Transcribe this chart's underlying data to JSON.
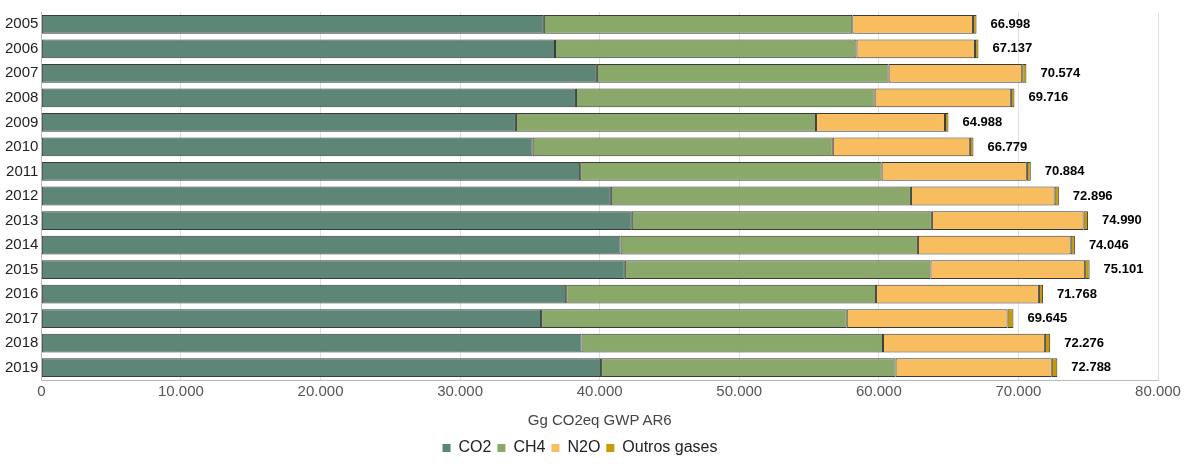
{
  "chart_data": {
    "type": "bar",
    "orientation": "horizontal",
    "stacked": true,
    "categories": [
      "2005",
      "2006",
      "2007",
      "2008",
      "2009",
      "2010",
      "2011",
      "2012",
      "2013",
      "2014",
      "2015",
      "2016",
      "2017",
      "2018",
      "2019"
    ],
    "series": [
      {
        "name": "CO2",
        "color": "#5e8677",
        "values": [
          36000,
          36800,
          39800,
          38300,
          34000,
          35200,
          38600,
          40800,
          42300,
          41500,
          41800,
          37600,
          35800,
          38700,
          40100
        ]
      },
      {
        "name": "CH4",
        "color": "#8ba86b",
        "values": [
          22100,
          21600,
          20900,
          21400,
          21500,
          21500,
          21600,
          21500,
          21500,
          21300,
          21900,
          22200,
          21900,
          21600,
          21100
        ]
      },
      {
        "name": "N2O",
        "color": "#f8bd5e",
        "values": [
          8650,
          8487,
          9574,
          9756,
          9238,
          9819,
          10404,
          10296,
          10870,
          10946,
          11081,
          11668,
          11525,
          11596,
          11188
        ]
      },
      {
        "name": "Outros gases",
        "color": "#c79a00",
        "values": [
          248,
          250,
          300,
          260,
          250,
          260,
          280,
          300,
          320,
          300,
          320,
          300,
          420,
          380,
          400
        ]
      }
    ],
    "totals": [
      "66.998",
      "67.137",
      "70.574",
      "69.716",
      "64.988",
      "66.779",
      "70.884",
      "72.896",
      "74.990",
      "74.046",
      "75.101",
      "71.768",
      "69.645",
      "72.276",
      "72.788"
    ],
    "xlim": [
      0,
      80000
    ],
    "xticks": [
      0,
      {
        "value": 10000,
        "label": "10.000"
      },
      {
        "value": 20000,
        "label": "20.000"
      },
      {
        "value": 30000,
        "label": "30.000"
      },
      {
        "value": 40000,
        "label": "40.000"
      },
      {
        "value": 50000,
        "label": "50.000"
      },
      {
        "value": 60000,
        "label": "60.000"
      },
      {
        "value": 70000,
        "label": "70.000"
      },
      {
        "value": 80000,
        "label": "80.000"
      }
    ],
    "xlabel": "Gg CO2eq GWP AR6",
    "grid": "x",
    "legend": "bottom"
  }
}
